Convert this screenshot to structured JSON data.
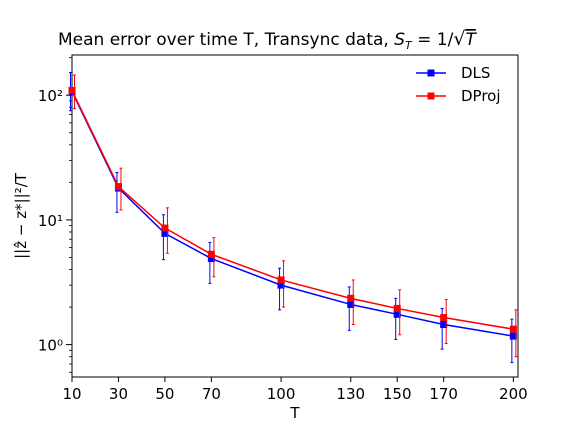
{
  "chart_data": {
    "type": "line",
    "title_main": "Mean error over time T, Transync data, ",
    "title_math": "S",
    "title_math_sub": "T",
    "title_math_rest": " = 1/",
    "title_math_sqrt_arg": "T",
    "xlabel": "T",
    "ylabel": "||ẑ − z*||²/T",
    "yscale": "log",
    "x": [
      10,
      30,
      50,
      70,
      100,
      130,
      150,
      170,
      200
    ],
    "xlim": [
      10,
      202
    ],
    "ylim": [
      0.55,
      210
    ],
    "y_ticks": [
      {
        "value": 1,
        "label": "10⁰"
      },
      {
        "value": 10,
        "label": "10¹"
      },
      {
        "value": 100,
        "label": "10²"
      }
    ],
    "legend_position": "top-right",
    "series": [
      {
        "name": "DLS",
        "color": "#0000ff",
        "values": [
          107,
          18,
          7.8,
          4.9,
          3.0,
          2.1,
          1.75,
          1.45,
          1.17
        ],
        "err_low": [
          75,
          11.5,
          4.8,
          3.1,
          1.9,
          1.3,
          1.1,
          0.92,
          0.72
        ],
        "err_high": [
          152,
          24,
          11.0,
          6.6,
          4.1,
          2.9,
          2.35,
          1.95,
          1.6
        ]
      },
      {
        "name": "DProj",
        "color": "#ff0000",
        "values": [
          109,
          18.5,
          8.6,
          5.3,
          3.3,
          2.35,
          1.95,
          1.65,
          1.33
        ],
        "err_low": [
          78,
          12,
          5.4,
          3.5,
          2.0,
          1.45,
          1.2,
          1.02,
          0.8
        ],
        "err_high": [
          145,
          26,
          12.5,
          7.2,
          4.7,
          3.3,
          2.75,
          2.3,
          1.9
        ]
      }
    ]
  }
}
